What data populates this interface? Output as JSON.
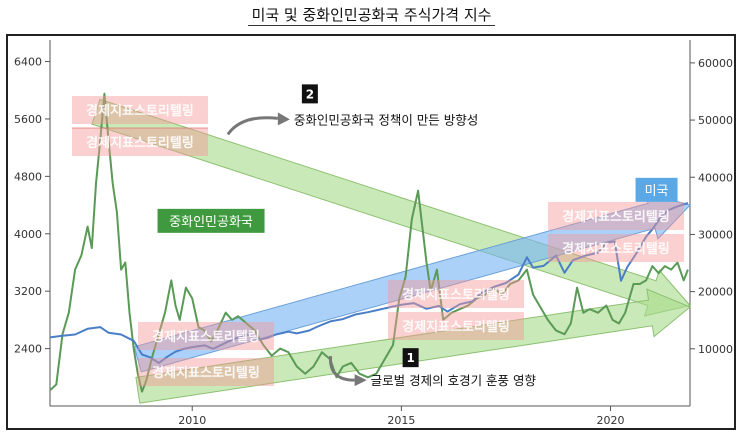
{
  "title": "미국 및 중화인민공화국 주식가격 지수",
  "chart_data": {
    "type": "line",
    "x_ticks": [
      2010,
      2015,
      2020
    ],
    "xlim": [
      2006.6,
      2021.9
    ],
    "y_left_ticks": [
      2400,
      3200,
      4000,
      4800,
      5600,
      6400
    ],
    "y_left_lim": [
      1600,
      6700
    ],
    "y_right_ticks": [
      10000,
      20000,
      30000,
      40000,
      50000,
      60000
    ],
    "y_right_lim": [
      0,
      64000
    ],
    "grid": false,
    "series": [
      {
        "name": "중화인민공화국",
        "axis": "left",
        "color": "#5a9a57",
        "points": [
          [
            2006.6,
            1820
          ],
          [
            2006.75,
            1900
          ],
          [
            2006.9,
            2600
          ],
          [
            2007.05,
            2900
          ],
          [
            2007.2,
            3500
          ],
          [
            2007.35,
            3700
          ],
          [
            2007.5,
            4100
          ],
          [
            2007.6,
            3800
          ],
          [
            2007.7,
            4700
          ],
          [
            2007.8,
            5300
          ],
          [
            2007.9,
            5950
          ],
          [
            2008.0,
            5300
          ],
          [
            2008.1,
            4700
          ],
          [
            2008.2,
            4300
          ],
          [
            2008.3,
            3500
          ],
          [
            2008.4,
            3600
          ],
          [
            2008.5,
            2900
          ],
          [
            2008.6,
            2400
          ],
          [
            2008.7,
            2050
          ],
          [
            2008.8,
            1800
          ],
          [
            2008.9,
            1950
          ],
          [
            2009.05,
            2300
          ],
          [
            2009.2,
            2600
          ],
          [
            2009.35,
            2900
          ],
          [
            2009.5,
            3350
          ],
          [
            2009.6,
            3000
          ],
          [
            2009.7,
            2800
          ],
          [
            2009.85,
            3250
          ],
          [
            2010.0,
            3100
          ],
          [
            2010.15,
            2700
          ],
          [
            2010.3,
            2650
          ],
          [
            2010.45,
            2500
          ],
          [
            2010.6,
            2650
          ],
          [
            2010.8,
            2900
          ],
          [
            2010.95,
            2800
          ],
          [
            2011.1,
            2850
          ],
          [
            2011.3,
            2750
          ],
          [
            2011.5,
            2650
          ],
          [
            2011.7,
            2450
          ],
          [
            2011.9,
            2300
          ],
          [
            2012.1,
            2400
          ],
          [
            2012.3,
            2350
          ],
          [
            2012.5,
            2150
          ],
          [
            2012.7,
            2050
          ],
          [
            2012.9,
            2150
          ],
          [
            2013.1,
            2350
          ],
          [
            2013.3,
            2250
          ],
          [
            2013.45,
            2000
          ],
          [
            2013.6,
            2150
          ],
          [
            2013.8,
            2200
          ],
          [
            2014.0,
            2050
          ],
          [
            2014.2,
            2000
          ],
          [
            2014.4,
            2050
          ],
          [
            2014.6,
            2250
          ],
          [
            2014.8,
            2450
          ],
          [
            2014.95,
            3100
          ],
          [
            2015.1,
            3400
          ],
          [
            2015.25,
            4200
          ],
          [
            2015.4,
            4600
          ],
          [
            2015.5,
            4100
          ],
          [
            2015.6,
            3600
          ],
          [
            2015.7,
            3200
          ],
          [
            2015.85,
            3500
          ],
          [
            2016.0,
            2800
          ],
          [
            2016.2,
            2900
          ],
          [
            2016.4,
            2950
          ],
          [
            2016.6,
            3000
          ],
          [
            2016.8,
            3100
          ],
          [
            2017.0,
            3150
          ],
          [
            2017.2,
            3250
          ],
          [
            2017.4,
            3150
          ],
          [
            2017.6,
            3300
          ],
          [
            2017.8,
            3350
          ],
          [
            2018.0,
            3500
          ],
          [
            2018.15,
            3150
          ],
          [
            2018.3,
            3000
          ],
          [
            2018.5,
            2800
          ],
          [
            2018.7,
            2650
          ],
          [
            2018.9,
            2600
          ],
          [
            2019.05,
            2750
          ],
          [
            2019.2,
            3250
          ],
          [
            2019.35,
            2900
          ],
          [
            2019.5,
            2950
          ],
          [
            2019.7,
            2900
          ],
          [
            2019.9,
            3000
          ],
          [
            2020.05,
            2800
          ],
          [
            2020.2,
            2750
          ],
          [
            2020.35,
            2900
          ],
          [
            2020.55,
            3300
          ],
          [
            2020.7,
            3300
          ],
          [
            2020.85,
            3350
          ],
          [
            2021.0,
            3550
          ],
          [
            2021.15,
            3450
          ],
          [
            2021.3,
            3550
          ],
          [
            2021.45,
            3500
          ],
          [
            2021.6,
            3600
          ],
          [
            2021.75,
            3350
          ],
          [
            2021.85,
            3500
          ]
        ]
      },
      {
        "name": "미국",
        "axis": "right",
        "color": "#4a7fc8",
        "points": [
          [
            2006.6,
            12000
          ],
          [
            2006.9,
            12300
          ],
          [
            2007.2,
            12500
          ],
          [
            2007.5,
            13500
          ],
          [
            2007.8,
            13800
          ],
          [
            2008.0,
            12800
          ],
          [
            2008.3,
            12500
          ],
          [
            2008.6,
            11400
          ],
          [
            2008.8,
            9000
          ],
          [
            2009.0,
            8500
          ],
          [
            2009.2,
            7500
          ],
          [
            2009.4,
            8600
          ],
          [
            2009.6,
            9500
          ],
          [
            2009.8,
            10000
          ],
          [
            2010.0,
            10300
          ],
          [
            2010.3,
            10600
          ],
          [
            2010.5,
            10000
          ],
          [
            2010.7,
            10700
          ],
          [
            2010.9,
            11400
          ],
          [
            2011.1,
            12000
          ],
          [
            2011.3,
            12500
          ],
          [
            2011.6,
            11600
          ],
          [
            2011.8,
            11900
          ],
          [
            2012.0,
            12500
          ],
          [
            2012.3,
            13000
          ],
          [
            2012.5,
            12700
          ],
          [
            2012.8,
            13200
          ],
          [
            2013.0,
            13900
          ],
          [
            2013.3,
            14800
          ],
          [
            2013.6,
            15200
          ],
          [
            2013.9,
            16000
          ],
          [
            2014.2,
            16400
          ],
          [
            2014.5,
            16900
          ],
          [
            2014.8,
            17400
          ],
          [
            2015.0,
            17700
          ],
          [
            2015.3,
            18000
          ],
          [
            2015.6,
            17000
          ],
          [
            2015.9,
            17500
          ],
          [
            2016.1,
            16500
          ],
          [
            2016.4,
            17800
          ],
          [
            2016.7,
            18300
          ],
          [
            2016.9,
            19700
          ],
          [
            2017.2,
            20800
          ],
          [
            2017.5,
            21500
          ],
          [
            2017.8,
            23000
          ],
          [
            2018.0,
            26000
          ],
          [
            2018.15,
            24200
          ],
          [
            2018.4,
            24500
          ],
          [
            2018.7,
            26300
          ],
          [
            2018.9,
            23300
          ],
          [
            2019.1,
            25500
          ],
          [
            2019.4,
            26300
          ],
          [
            2019.7,
            26800
          ],
          [
            2019.9,
            28500
          ],
          [
            2020.1,
            28800
          ],
          [
            2020.25,
            21900
          ],
          [
            2020.4,
            24300
          ],
          [
            2020.6,
            26500
          ],
          [
            2020.85,
            29600
          ],
          [
            2021.0,
            30900
          ],
          [
            2021.2,
            33000
          ],
          [
            2021.4,
            34300
          ],
          [
            2021.6,
            34900
          ],
          [
            2021.85,
            35500
          ]
        ]
      }
    ],
    "annotations": [
      {
        "type": "label",
        "text": "중화인민공화국",
        "x": 2010.45,
        "y": 4180,
        "axis": "left",
        "color": "#3f9a3f"
      },
      {
        "type": "label",
        "text": "미국",
        "x": 2021.1,
        "y": 37800,
        "axis": "right",
        "color": "#5aa8e6"
      },
      {
        "type": "callout",
        "number": "2",
        "text": "중화인민공화국 정책이 만든 방향성",
        "x": 2010.9,
        "y": 5580,
        "axis": "left"
      },
      {
        "type": "callout",
        "number": "1",
        "text": "글로벌 경제의 호경기 훈풍 영향",
        "x": 2013.5,
        "y": 1960,
        "axis": "left"
      },
      {
        "type": "trend_arrow",
        "color": "green",
        "from": [
          2007.7,
          5700
        ],
        "to": [
          2021.9,
          3000
        ],
        "axis": "left"
      },
      {
        "type": "trend_arrow",
        "color": "blue",
        "from": [
          2008.7,
          2250
        ],
        "to": [
          2021.9,
          4400
        ],
        "axis": "left"
      },
      {
        "type": "trend_arrow",
        "color": "green",
        "from": [
          2008.7,
          1820
        ],
        "to": [
          2021.9,
          2980
        ],
        "axis": "left"
      }
    ],
    "watermarks": [
      "경제지표스토리텔링"
    ]
  }
}
